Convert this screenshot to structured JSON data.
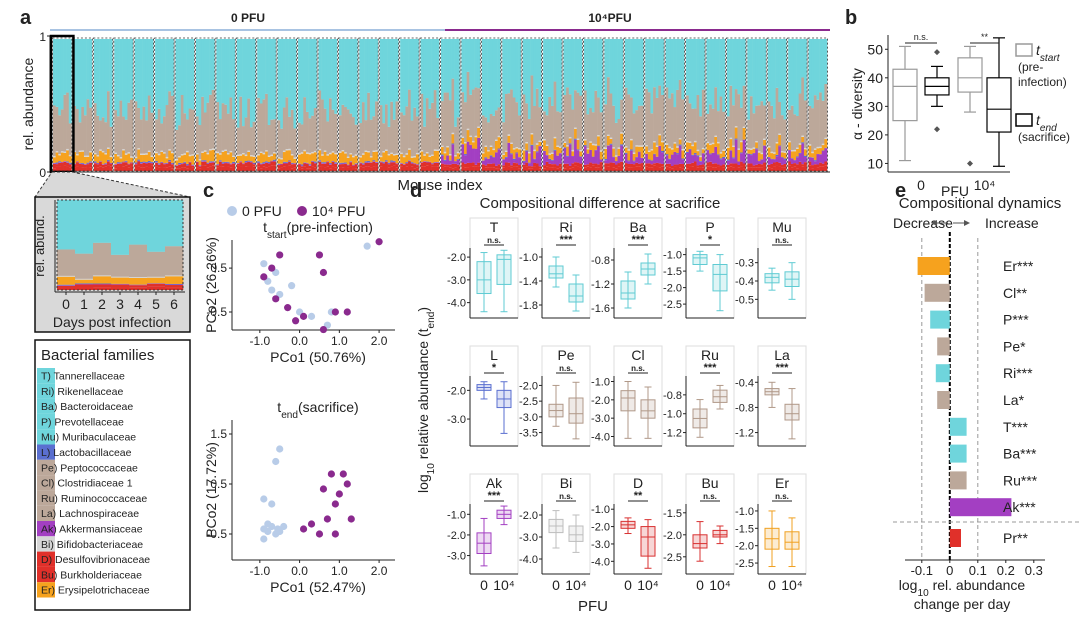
{
  "panel_a": {
    "letter": "a",
    "group_labels": [
      {
        "text": "0 PFU",
        "color": "#a8c3e2"
      },
      {
        "text": "10⁴PFU",
        "color": "#8a2a8e"
      }
    ],
    "y_label": "rel. abundance",
    "ylim": [
      0,
      1
    ],
    "yticks": [
      0,
      1
    ],
    "x_label": "Mouse index",
    "inset": {
      "y_label": "rel. abund.",
      "xticks": [
        0,
        1,
        2,
        3,
        4,
        5,
        6
      ],
      "x_label": "Days post infection"
    }
  },
  "legend": {
    "title": "Bacterial families",
    "items": [
      {
        "label": "T) Tannerellaceae",
        "color": "#6fd5dc"
      },
      {
        "label": "Ri) Rikenellaceae",
        "color": "#6fd5dc"
      },
      {
        "label": "Ba) Bacteroidaceae",
        "color": "#6fd5dc"
      },
      {
        "label": "P) Prevotellaceae",
        "color": "#6fd5dc"
      },
      {
        "label": "Mu) Muribaculaceae",
        "color": "#6fd5dc"
      },
      {
        "label": "L) Lactobacillaceae",
        "color": "#5a6fd0"
      },
      {
        "label": "Pe) Peptococcaceae",
        "color": "#bca89a"
      },
      {
        "label": "Cl) Clostridiaceae 1",
        "color": "#bca89a"
      },
      {
        "label": "Ru) Ruminococcaceae",
        "color": "#bca89a"
      },
      {
        "label": "La) Lachnospiraceae",
        "color": "#bca89a"
      },
      {
        "label": "Ak) Akkermansiaceae",
        "color": "#a33fc2"
      },
      {
        "label": "Bi) Bifidobacteriaceae",
        "color": "#d6d6d6"
      },
      {
        "label": "D) Desulfovibrionaceae",
        "color": "#e0302a"
      },
      {
        "label": "Bu) Burkholderiaceae",
        "color": "#e0302a"
      },
      {
        "label": "Er) Erysipelotrichaceae",
        "color": "#f6a21e"
      }
    ]
  },
  "panel_b": {
    "letter": "b",
    "y_label": "α - diversity",
    "ylim": [
      7,
      55
    ],
    "yticks": [
      10,
      20,
      30,
      40,
      50
    ],
    "x_label": "PFU",
    "groups": [
      {
        "label": "0",
        "significance": "n.s.",
        "boxes": [
          {
            "stats": [
              11,
              25,
              37,
              43,
              51
            ],
            "outliers": []
          },
          {
            "stats": [
              30,
              34,
              37,
              40,
              44
            ],
            "outliers": [
              49,
              22
            ]
          }
        ]
      },
      {
        "label": "10⁴",
        "significance": "**",
        "boxes": [
          {
            "stats": [
              28,
              35,
              40,
              47,
              51
            ],
            "outliers": [
              10
            ]
          },
          {
            "stats": [
              9,
              21,
              29,
              40,
              54
            ],
            "outliers": []
          }
        ]
      }
    ],
    "legend": [
      {
        "parts": [
          {
            "text": "t"
          },
          {
            "text": "start",
            "sub": true
          }
        ],
        "note": [
          "(pre-",
          "infection)"
        ],
        "color": "#9a9a9a"
      },
      {
        "parts": [
          {
            "text": "t"
          },
          {
            "text": "end",
            "sub": true
          }
        ],
        "note": [
          "(sacrifice)"
        ],
        "color": "#000000"
      }
    ]
  },
  "panel_c": {
    "letter": "c",
    "legend": [
      {
        "name": "0 PFU",
        "color": "#b8cce8"
      },
      {
        "name": "10⁴ PFU",
        "color": "#8a2a8e"
      }
    ],
    "plots": [
      {
        "title": [
          {
            "text": "t"
          },
          {
            "text": "start",
            "sub": true
          },
          {
            "text": "(pre-infection)"
          }
        ],
        "x_label": "PCo1 (50.76%)",
        "y_label": "PCo2 (26.26%)",
        "xlim": [
          -1.7,
          2.4
        ],
        "xticks": [
          {
            "value": -1,
            "label": "-1.0"
          },
          {
            "value": 0,
            "label": "0.0"
          },
          {
            "value": 1,
            "label": "1.0"
          },
          {
            "value": 2,
            "label": "2.0"
          }
        ],
        "ylim": [
          -0.91,
          1.14
        ],
        "yticks": [
          0.5,
          -0.5
        ],
        "groups": [
          {
            "x": [
              -0.9,
              -0.8,
              -0.7,
              -0.6,
              -0.2,
              0.0,
              0.3,
              0.7,
              0.8,
              1.7,
              -0.5
            ],
            "y": [
              0.6,
              0.2,
              0.0,
              0.4,
              0.1,
              -0.5,
              -0.6,
              -0.8,
              -0.5,
              1.0,
              -0.1
            ]
          },
          {
            "x": [
              -0.9,
              -0.7,
              -0.6,
              -0.3,
              -0.1,
              0.1,
              0.5,
              0.6,
              0.6,
              0.9,
              2.0,
              1.2,
              -0.5
            ],
            "y": [
              0.3,
              0.5,
              -0.2,
              -0.4,
              -0.7,
              -0.6,
              0.8,
              0.4,
              -0.9,
              -0.5,
              1.1,
              -0.5,
              0.8
            ]
          }
        ]
      },
      {
        "title": [
          {
            "text": "t"
          },
          {
            "text": "end",
            "sub": true
          },
          {
            "text": "(sacrifice)"
          }
        ],
        "x_label": "PCo1 (52.47%)",
        "y_label": "PCo2 (17.72%)",
        "xlim": [
          -1.7,
          2.4
        ],
        "xticks": [
          {
            "value": -1,
            "label": "-1.0"
          },
          {
            "value": 0,
            "label": "0.0"
          },
          {
            "value": 1,
            "label": "1.0"
          },
          {
            "value": 2,
            "label": "2.0"
          }
        ],
        "ylim": [
          -1.02,
          1.78
        ],
        "yticks": [
          1.5,
          0.5,
          -0.5
        ],
        "groups": [
          {
            "x": [
              -0.9,
              -0.8,
              -0.7,
              -0.6,
              -0.9,
              -0.5,
              -0.7,
              -0.6,
              -0.8,
              -0.55,
              -0.5,
              -0.4,
              -0.9
            ],
            "y": [
              -0.4,
              -0.45,
              -0.35,
              -0.5,
              0.2,
              1.2,
              0.1,
              0.95,
              -0.3,
              -0.4,
              -0.45,
              -0.35,
              -0.6
            ]
          },
          {
            "x": [
              0.1,
              0.3,
              0.5,
              0.6,
              0.8,
              0.9,
              1.0,
              1.1,
              1.2,
              1.3,
              0.9,
              0.7
            ],
            "y": [
              -0.4,
              -0.3,
              -0.5,
              0.4,
              0.7,
              -0.5,
              0.3,
              0.7,
              0.5,
              -0.2,
              0.1,
              -0.2
            ]
          }
        ]
      }
    ]
  },
  "panel_d": {
    "letter": "d",
    "title": "Compositional difference at sacrifice",
    "y_label": [
      {
        "text": "log"
      },
      {
        "text": "10",
        "sub": true
      },
      {
        "text": " relative abundance ("
      },
      {
        "text": "t"
      },
      {
        "text": "end",
        "sub": true
      },
      {
        "text": ")"
      }
    ],
    "x_label": "PFU",
    "xticks": [
      "0",
      "10⁴"
    ],
    "plots": [
      {
        "name": "T",
        "significance": "n.s.",
        "color": "#5fcbd3",
        "ylim": [
          -4.5,
          -1.6
        ],
        "yticks": [
          {
            "value": -2,
            "label": "-2.0"
          },
          {
            "value": -3,
            "label": "-3.0"
          },
          {
            "value": -4,
            "label": "-4.0"
          }
        ],
        "boxes": [
          [
            -4.4,
            -3.6,
            -3.0,
            -2.2,
            -1.8
          ],
          [
            -4.4,
            -3.2,
            -2.1,
            -1.9,
            -1.7
          ]
        ]
      },
      {
        "name": "Ri",
        "significance": "***",
        "color": "#5fcbd3",
        "ylim": [
          -1.95,
          -0.85
        ],
        "yticks": [
          {
            "value": -1,
            "label": "-1.0"
          },
          -1.4,
          -1.8
        ],
        "boxes": [
          [
            -1.5,
            -1.35,
            -1.28,
            -1.15,
            -1.0
          ],
          [
            -1.9,
            -1.75,
            -1.65,
            -1.45,
            -1.3
          ]
        ]
      },
      {
        "name": "Ba",
        "significance": "***",
        "color": "#5fcbd3",
        "ylim": [
          -1.7,
          -0.6
        ],
        "yticks": [
          -0.8,
          -1.2,
          -1.6
        ],
        "boxes": [
          [
            -1.6,
            -1.45,
            -1.35,
            -1.15,
            -1.0
          ],
          [
            -1.2,
            -1.05,
            -0.95,
            -0.85,
            -0.7
          ]
        ]
      },
      {
        "name": "P",
        "significance": "*",
        "color": "#5fcbd3",
        "ylim": [
          -2.8,
          -0.8
        ],
        "yticks": [
          {
            "value": -1,
            "label": "-1.0"
          },
          -1.5,
          {
            "value": -2,
            "label": "-2.0"
          },
          -2.5
        ],
        "boxes": [
          [
            -1.5,
            -1.3,
            -1.1,
            -1.0,
            -0.9
          ],
          [
            -2.7,
            -2.1,
            -1.6,
            -1.3,
            -1.0
          ]
        ]
      },
      {
        "name": "Mu",
        "significance": "n.s.",
        "color": "#5fcbd3",
        "ylim": [
          -0.58,
          -0.22
        ],
        "yticks": [
          -0.3,
          -0.4,
          -0.5
        ],
        "boxes": [
          [
            -0.45,
            -0.41,
            -0.38,
            -0.36,
            -0.33
          ],
          [
            -0.5,
            -0.43,
            -0.39,
            -0.35,
            -0.3
          ]
        ]
      },
      {
        "name": "L",
        "significance": "*",
        "color": "#5a6fd0",
        "ylim": [
          -3.8,
          -1.5
        ],
        "yticks": [
          {
            "value": -2,
            "label": "-2.0"
          },
          {
            "value": -3,
            "label": "-3.0"
          }
        ],
        "boxes": [
          [
            -2.3,
            -2.0,
            -1.9,
            -1.8,
            -1.7
          ],
          [
            -3.5,
            -2.6,
            -2.3,
            -2.0,
            -1.7
          ]
        ]
      },
      {
        "name": "Pe",
        "significance": "n.s.",
        "color": "#b09888",
        "ylim": [
          -3.8,
          -1.7
        ],
        "yticks": [
          {
            "value": -2,
            "label": "-2.0"
          },
          -2.5,
          {
            "value": -3,
            "label": "-3.0"
          },
          -3.5
        ],
        "boxes": [
          [
            -3.3,
            -3.0,
            -2.8,
            -2.6,
            -2.0
          ],
          [
            -3.7,
            -3.2,
            -2.9,
            -2.4,
            -1.9
          ]
        ]
      },
      {
        "name": "Cl",
        "significance": "n.s.",
        "color": "#b09888",
        "ylim": [
          -4.3,
          -0.7
        ],
        "yticks": [
          {
            "value": -1,
            "label": "-1.0"
          },
          {
            "value": -2,
            "label": "-2.0"
          },
          {
            "value": -3,
            "label": "-3.0"
          },
          {
            "value": -4,
            "label": "-4.0"
          }
        ],
        "boxes": [
          [
            -4.1,
            -2.6,
            -1.9,
            -1.5,
            -1.0
          ],
          [
            -4.1,
            -3.0,
            -2.6,
            -2.0,
            -1.3
          ]
        ]
      },
      {
        "name": "Ru",
        "significance": "***",
        "color": "#b09888",
        "ylim": [
          -1.3,
          -0.6
        ],
        "yticks": [
          -0.8,
          {
            "value": -1,
            "label": "-1.0"
          },
          -1.2
        ],
        "boxes": [
          [
            -1.25,
            -1.15,
            -1.05,
            -0.95,
            -0.85
          ],
          [
            -0.95,
            -0.88,
            -0.82,
            -0.75,
            -0.7
          ]
        ]
      },
      {
        "name": "La",
        "significance": "***",
        "color": "#b09888",
        "ylim": [
          -1.35,
          -0.3
        ],
        "yticks": [
          -0.4,
          -0.8,
          -1.2
        ],
        "boxes": [
          [
            -0.8,
            -0.6,
            -0.55,
            -0.5,
            -0.4
          ],
          [
            -1.3,
            -1.0,
            -0.9,
            -0.75,
            -0.5
          ]
        ]
      },
      {
        "name": "Ak",
        "significance": "***",
        "color": "#a33fc2",
        "ylim": [
          -3.7,
          -0.5
        ],
        "yticks": [
          {
            "value": -1,
            "label": "-1.0"
          },
          {
            "value": -2,
            "label": "-2.0"
          },
          {
            "value": -3,
            "label": "-3.0"
          }
        ],
        "boxes": [
          [
            -3.5,
            -2.9,
            -2.4,
            -1.9,
            -1.2
          ],
          [
            -1.5,
            -1.2,
            -1.0,
            -0.8,
            -0.6
          ]
        ]
      },
      {
        "name": "Bi",
        "significance": "n.s.",
        "color": "#bdbdbd",
        "ylim": [
          -4.5,
          -1.5
        ],
        "yticks": [
          {
            "value": -2,
            "label": "-2.0"
          },
          {
            "value": -3,
            "label": "-3.0"
          },
          {
            "value": -4,
            "label": "-4.0"
          }
        ],
        "boxes": [
          [
            -3.5,
            -2.8,
            -2.5,
            -2.2,
            -1.8
          ],
          [
            -3.7,
            -3.2,
            -2.9,
            -2.5,
            -2.0
          ]
        ]
      },
      {
        "name": "D",
        "significance": "**",
        "color": "#d83030",
        "ylim": [
          -4.5,
          -0.7
        ],
        "yticks": [
          {
            "value": -1,
            "label": "-1.0"
          },
          {
            "value": -2,
            "label": "-2.0"
          },
          {
            "value": -3,
            "label": "-3.0"
          },
          {
            "value": -4,
            "label": "-4.0"
          }
        ],
        "boxes": [
          [
            -2.4,
            -2.1,
            -1.9,
            -1.7,
            -1.5
          ],
          [
            -4.4,
            -3.7,
            -2.6,
            -2.0,
            -1.6
          ]
        ]
      },
      {
        "name": "Bu",
        "significance": "n.s.",
        "color": "#d83030",
        "ylim": [
          -2.8,
          -1.3
        ],
        "yticks": [
          -1.5,
          {
            "value": -2,
            "label": "-2.0"
          },
          -2.5
        ],
        "boxes": [
          [
            -2.6,
            -2.3,
            -2.2,
            -2.0,
            -1.7
          ],
          [
            -2.2,
            -2.05,
            -2.0,
            -1.9,
            -1.8
          ]
        ]
      },
      {
        "name": "Er",
        "significance": "n.s.",
        "color": "#f0a020",
        "ylim": [
          -2.7,
          -0.8
        ],
        "yticks": [
          {
            "value": -1,
            "label": "-1.0"
          },
          -1.5,
          {
            "value": -2,
            "label": "-2.0"
          },
          -2.5
        ],
        "boxes": [
          [
            -2.6,
            -2.1,
            -1.8,
            -1.5,
            -1.0
          ],
          [
            -2.6,
            -2.1,
            -1.9,
            -1.6,
            -1.2
          ]
        ]
      }
    ]
  },
  "panel_e": {
    "letter": "e",
    "title": "Compositional dynamics",
    "decrease": "Decrease",
    "increase": "Increase",
    "xlim": [
      -0.16,
      0.34
    ],
    "xticks": [
      -0.1,
      0,
      0.1,
      0.2,
      0.3
    ],
    "x_label": [
      {
        "text": "log"
      },
      {
        "text": "10",
        "sub": true
      },
      {
        "text": " rel. abundance"
      }
    ],
    "x_label_2": "change per day",
    "rows": [
      {
        "label": "Er***",
        "value": -0.115,
        "color": "#f6a21e"
      },
      {
        "label": "Cl**",
        "value": -0.09,
        "color": "#bca89a"
      },
      {
        "label": "P***",
        "value": -0.07,
        "color": "#6fd5dc"
      },
      {
        "label": "Pe*",
        "value": -0.045,
        "color": "#bca89a"
      },
      {
        "label": "Ri***",
        "value": -0.05,
        "color": "#6fd5dc"
      },
      {
        "label": "La*",
        "value": -0.045,
        "color": "#bca89a"
      },
      {
        "label": "T***",
        "value": 0.06,
        "color": "#6fd5dc"
      },
      {
        "label": "Ba***",
        "value": 0.06,
        "color": "#6fd5dc"
      },
      {
        "label": "Ru***",
        "value": 0.06,
        "color": "#bca89a"
      },
      {
        "label": "Ak***",
        "value": 0.22,
        "color": "#a33fc2"
      },
      {
        "label": "Pr**",
        "value": 0.04,
        "color": "#e0302a",
        "label_color": "#e0302a"
      }
    ]
  }
}
